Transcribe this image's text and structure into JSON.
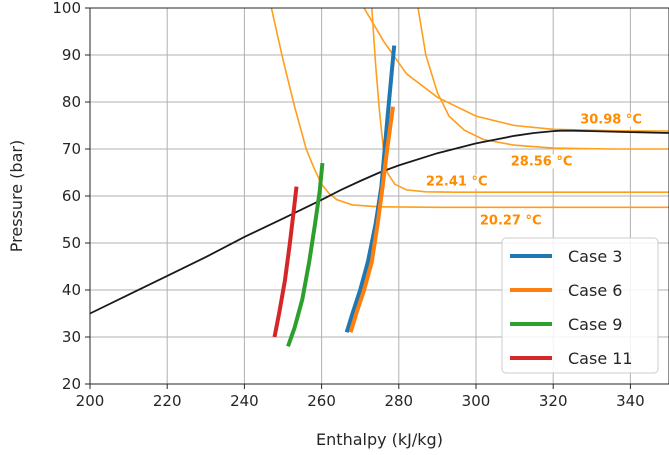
{
  "chart_data": {
    "type": "line",
    "xlabel": "Enthalpy (kJ/kg)",
    "ylabel": "Pressure (bar)",
    "xlim": [
      200,
      350
    ],
    "ylim": [
      20,
      100
    ],
    "xticks": [
      "200",
      "220",
      "240",
      "260",
      "280",
      "300",
      "320",
      "340"
    ],
    "yticks": [
      "20",
      "30",
      "40",
      "50",
      "60",
      "70",
      "80",
      "90",
      "100"
    ],
    "grid": true,
    "legend_position": "lower-right",
    "colors": {
      "saturation": "#1a1a1a",
      "isotherm": "#ff9e1a",
      "isotherm_label": "#ff8c00",
      "grid": "#b0b0b0"
    },
    "saturation_curve": {
      "x": [
        200,
        210,
        220,
        230,
        240,
        250,
        255,
        260,
        265,
        270,
        275,
        280,
        290,
        300,
        310,
        315,
        320,
        322,
        325,
        330,
        340,
        350
      ],
      "y": [
        35,
        39,
        43,
        47,
        51.3,
        55.2,
        57.2,
        59.2,
        61.3,
        63.2,
        65,
        66.5,
        69.1,
        71.2,
        72.8,
        73.4,
        73.8,
        73.9,
        73.9,
        73.8,
        73.6,
        73.4
      ]
    },
    "isotherms": [
      {
        "label": "20.27 °C",
        "label_x": 301,
        "label_y": 53.9,
        "x": [
          247,
          250,
          253,
          256,
          258,
          260,
          262,
          264,
          268,
          275,
          290,
          320,
          350
        ],
        "y": [
          100,
          89,
          79,
          70,
          66,
          62.5,
          60.5,
          59.2,
          58.1,
          57.7,
          57.6,
          57.6,
          57.6
        ]
      },
      {
        "label": "22.41 °C",
        "label_x": 287,
        "label_y": 62.2,
        "x": [
          273,
          274,
          275,
          276,
          277,
          279,
          282,
          287,
          295,
          310,
          350
        ],
        "y": [
          100,
          88,
          78,
          70,
          65,
          62.5,
          61.3,
          60.9,
          60.8,
          60.8,
          60.8
        ]
      },
      {
        "label": "28.56 °C",
        "label_x": 309,
        "label_y": 66.5,
        "x": [
          285,
          287,
          290,
          293,
          297,
          302,
          310,
          320,
          335,
          350
        ],
        "y": [
          100,
          90,
          82,
          77,
          74,
          72,
          70.8,
          70.2,
          70,
          70
        ]
      },
      {
        "label": "30.98 °C",
        "label_x": 327,
        "label_y": 75.4,
        "x": [
          271,
          276,
          282,
          290,
          300,
          310,
          320,
          335,
          350
        ],
        "y": [
          100,
          93,
          86,
          81,
          77,
          75,
          74.2,
          73.9,
          73.8
        ]
      }
    ],
    "series": [
      {
        "name": "Case 3",
        "color": "#1f77b4",
        "x": [
          266.5,
          268,
          270,
          272,
          274,
          275.5,
          277,
          278.8
        ],
        "y": [
          31,
          35,
          40,
          46,
          54,
          62,
          76,
          92
        ]
      },
      {
        "name": "Case 6",
        "color": "#ff7f0e",
        "x": [
          267.5,
          269,
          271,
          273,
          274.5,
          275.8,
          277,
          278.5
        ],
        "y": [
          31,
          35,
          40,
          46,
          54,
          62,
          70,
          79
        ]
      },
      {
        "name": "Case 9",
        "color": "#2ca02c",
        "x": [
          251.3,
          253,
          255,
          256.8,
          258.3,
          259.5,
          260.2
        ],
        "y": [
          28,
          32,
          38,
          46,
          54,
          61,
          67
        ]
      },
      {
        "name": "Case 11",
        "color": "#d62728",
        "x": [
          247.8,
          249,
          250.5,
          251.8,
          252.8,
          253.5
        ],
        "y": [
          30,
          35,
          42,
          50,
          57,
          62
        ]
      }
    ]
  }
}
